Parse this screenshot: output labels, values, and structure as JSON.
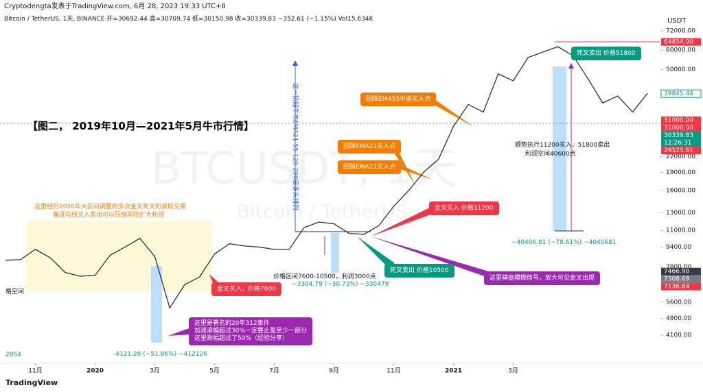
{
  "header": {
    "publisher": "Cryptodengta发表于TradingView.com, 6月 28, 2023 19:33 UTC+8",
    "symbol_info": "Bitcoin / TetherUS, 1天, BINANCE  开=30692.44  高=30709.74  低=30150.98  收=30339.83  −352.61 (−1.15%)  Vol15.634K"
  },
  "watermark": {
    "symbol": "BTCUSDT, 1天",
    "name": "Bitcoin / TetherUS"
  },
  "chart_data": {
    "type": "line",
    "log_scale": true,
    "grid": false,
    "currency": "USDT",
    "categories": [
      null,
      null,
      "11月",
      null,
      null,
      null,
      "2020",
      null,
      null,
      null,
      "3月",
      null,
      null,
      null,
      "5月",
      null,
      null,
      null,
      "7月",
      null,
      null,
      null,
      "9月",
      null,
      null,
      null,
      "11月",
      null,
      null,
      null,
      "2021",
      null,
      null,
      null,
      "3月",
      null,
      null,
      null,
      null,
      null,
      null,
      null,
      null,
      null
    ],
    "series": [
      {
        "color": "#2a2e39",
        "values": [
          8300,
          8350,
          9200,
          8500,
          7400,
          7150,
          7200,
          8700,
          9400,
          10200,
          8600,
          5300,
          6600,
          7100,
          8800,
          9700,
          9500,
          9400,
          9200,
          9200,
          11300,
          11900,
          11700,
          10700,
          10600,
          11500,
          13800,
          16000,
          19000,
          21500,
          29300,
          36000,
          33500,
          48000,
          45000,
          56000,
          59000,
          62000,
          57000,
          46000,
          36500,
          39000,
          33500,
          40000
        ]
      }
    ],
    "ylim": [
      3360,
      83500
    ],
    "yticks": [
      {
        "value": 72000,
        "label": "72000.00"
      },
      {
        "value": 60000,
        "label": "60000.00"
      },
      {
        "value": 50000,
        "label": "50000.00"
      },
      {
        "value": 22000,
        "label": "22000.00"
      },
      {
        "value": 19000,
        "label": "19000.00"
      },
      {
        "value": 16000,
        "label": "16000.00"
      },
      {
        "value": 13000,
        "label": "13000.00"
      },
      {
        "value": 11000,
        "label": "11000.00"
      },
      {
        "value": 9400,
        "label": "9400.00"
      },
      {
        "value": 7800,
        "label": "7800.00"
      },
      {
        "value": 5600,
        "label": "5600.00"
      },
      {
        "value": 4800,
        "label": "4800.00"
      },
      {
        "value": 4100,
        "label": "4100.00"
      }
    ],
    "price_labels": [
      {
        "value": 64854,
        "label": "64854.00",
        "color": "#f23645"
      },
      {
        "value": 39845.44,
        "label": "39845.44",
        "color": "#ffffff"
      },
      {
        "value": 31000,
        "label": "31000.00",
        "color": "#f23645"
      },
      {
        "value": 31000,
        "label": "31000.00",
        "color": "#f23645"
      },
      {
        "value": 30339.83,
        "label": "30339.83",
        "color": "#089981"
      },
      {
        "value": 29525.61,
        "label": "29525.61",
        "color": "#f23645"
      },
      {
        "value": 7466.9,
        "label": "7466.90",
        "color": "#363a45"
      },
      {
        "value": 7308.69,
        "label": "7308.69",
        "color": "#787b86"
      },
      {
        "value": 7136.84,
        "label": "7136.84",
        "color": "#f23645"
      }
    ],
    "countdown": "12:26:31"
  },
  "annotations": {
    "title": "【图二， 2019年10月—2021年5月牛市行情】",
    "range_note_1": "这里经历2020年大区间调整的多次金叉死叉的波段交易",
    "range_note_2": "靠近均线买入卖出可以压缩风险扩大利润",
    "event_1": "这里是著名的20年312事件",
    "event_2": "加速滚幅超过30%一定要止盈至少一部分",
    "event_3": "这里跌幅超过了50%（经验分享）",
    "drop_measure": "-4121.26 (−51.86%) −412126",
    "buy_7600": "金叉买入，价格7600",
    "range_profit": "价格区间7600-10500，利润3000点",
    "range_measure": "−3304.79 (−30.73%) −330479",
    "ema_note": "这一阶段牛市EMA21-55-120-200呈多头排列",
    "sell_10500": "死叉卖出 价格10500",
    "sideways": "这里横盘模糊信号，放大可见金叉出现",
    "buy_11200": "金叉买入 价格11200",
    "ema21_a": "回踩EMA21买入点",
    "ema21_b": "回踩EMA21买入点",
    "ema55": "回踩EMA55中途买入点",
    "sell_51800": "死叉卖出 价格51800",
    "trend_1": "顺势执行11200买入，51800卖出",
    "trend_2": "利润空间40600点",
    "big_measure": "−40406.81 (−78.61%) −4040681",
    "left_cut": "格空间",
    "left_num": "2854"
  },
  "footer": {
    "brand": "TradingView"
  }
}
